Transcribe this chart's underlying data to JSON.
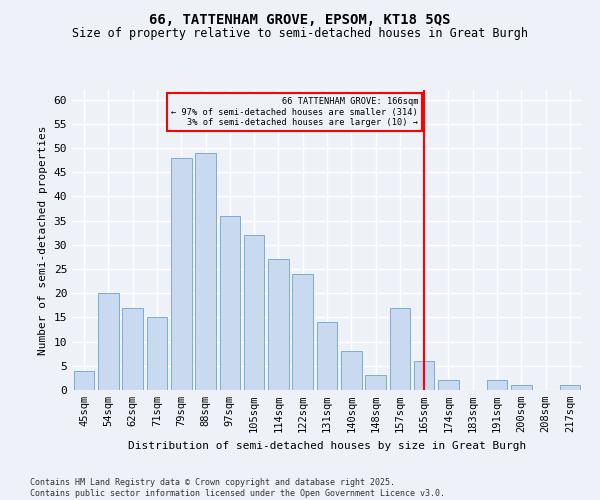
{
  "title1": "66, TATTENHAM GROVE, EPSOM, KT18 5QS",
  "title2": "Size of property relative to semi-detached houses in Great Burgh",
  "xlabel": "Distribution of semi-detached houses by size in Great Burgh",
  "ylabel": "Number of semi-detached properties",
  "categories": [
    "45sqm",
    "54sqm",
    "62sqm",
    "71sqm",
    "79sqm",
    "88sqm",
    "97sqm",
    "105sqm",
    "114sqm",
    "122sqm",
    "131sqm",
    "140sqm",
    "148sqm",
    "157sqm",
    "165sqm",
    "174sqm",
    "183sqm",
    "191sqm",
    "200sqm",
    "208sqm",
    "217sqm"
  ],
  "values": [
    4,
    20,
    17,
    15,
    48,
    49,
    36,
    32,
    27,
    24,
    14,
    8,
    3,
    17,
    6,
    2,
    0,
    2,
    1,
    0,
    1
  ],
  "bar_color": "#c9d9f0",
  "bar_edge_color": "#7aadd4",
  "vline_x": 14,
  "vline_color": "red",
  "annotation_title": "66 TATTENHAM GROVE: 166sqm",
  "annotation_line1": "← 97% of semi-detached houses are smaller (314)",
  "annotation_line2": "3% of semi-detached houses are larger (10) →",
  "annotation_box_color": "red",
  "ylim": [
    0,
    62
  ],
  "yticks": [
    0,
    5,
    10,
    15,
    20,
    25,
    30,
    35,
    40,
    45,
    50,
    55,
    60
  ],
  "footnote": "Contains HM Land Registry data © Crown copyright and database right 2025.\nContains public sector information licensed under the Open Government Licence v3.0.",
  "bg_color": "#eef2f8"
}
